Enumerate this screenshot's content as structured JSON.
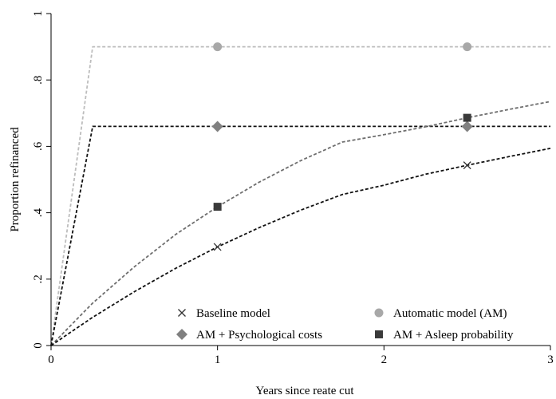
{
  "chart_data": {
    "type": "line",
    "xlabel": "Years since reate cut",
    "ylabel": "Proportion refinanced",
    "xlim": [
      0,
      3
    ],
    "ylim": [
      0,
      1
    ],
    "x_ticks": [
      0,
      1,
      2,
      3
    ],
    "x_tick_labels": [
      "0",
      "1",
      "2",
      "3"
    ],
    "y_ticks": [
      0,
      0.2,
      0.4,
      0.6,
      0.8,
      1
    ],
    "y_tick_labels": [
      "0",
      ".2",
      ".4",
      ".6",
      ".8",
      "1"
    ],
    "grid": false,
    "legend_position": "bottom-right",
    "lines": [
      {
        "color": "#bdbdbd",
        "style": "dashed",
        "x": [
          0,
          0.25,
          3
        ],
        "y": [
          0,
          0.9,
          0.9
        ]
      },
      {
        "color": "#111111",
        "style": "dashed",
        "x": [
          0,
          0.25,
          3
        ],
        "y": [
          0,
          0.66,
          0.66
        ]
      },
      {
        "color": "#6e6e6e",
        "style": "dashed",
        "x": [
          0,
          0.25,
          0.5,
          0.75,
          1,
          1.25,
          1.5,
          1.75,
          2,
          2.25,
          2.5,
          2.75,
          3
        ],
        "y": [
          0,
          0.128,
          0.237,
          0.335,
          0.418,
          0.492,
          0.557,
          0.613,
          0.635,
          0.659,
          0.686,
          0.711,
          0.735
        ]
      },
      {
        "color": "#111111",
        "style": "dashed",
        "x": [
          0,
          0.25,
          0.5,
          0.75,
          1,
          1.25,
          1.5,
          1.75,
          2,
          2.25,
          2.5,
          2.75,
          3
        ],
        "y": [
          0,
          0.085,
          0.162,
          0.233,
          0.297,
          0.355,
          0.408,
          0.455,
          0.483,
          0.516,
          0.543,
          0.569,
          0.594
        ]
      }
    ],
    "series": [
      {
        "name": "Baseline model",
        "marker": "x",
        "color": "#333333",
        "x": [
          1,
          2.5
        ],
        "y": [
          0.297,
          0.543
        ]
      },
      {
        "name": "Automatic model (AM)",
        "marker": "circle",
        "color": "#a8a8a8",
        "x": [
          1,
          2.5
        ],
        "y": [
          0.9,
          0.9
        ]
      },
      {
        "name": "AM + Psychological costs",
        "marker": "diamond",
        "color": "#808080",
        "x": [
          1,
          2.5
        ],
        "y": [
          0.66,
          0.66
        ]
      },
      {
        "name": "AM + Asleep probability",
        "marker": "square",
        "color": "#3a3a3a",
        "x": [
          1,
          2.5
        ],
        "y": [
          0.418,
          0.686
        ]
      }
    ]
  }
}
